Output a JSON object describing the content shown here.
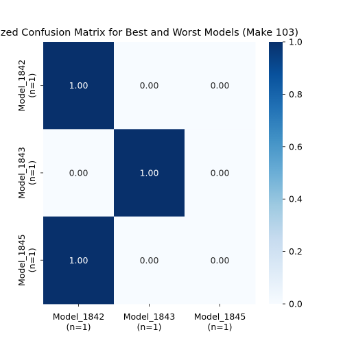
{
  "chart_data": {
    "type": "heatmap",
    "title": "zed Confusion Matrix for Best and Worst Models (Make 103)",
    "x_categories": [
      "Model_1842\n(n=1)",
      "Model_1843\n(n=1)",
      "Model_1845\n(n=1)"
    ],
    "y_categories": [
      "Model_1842\n(n=1)",
      "Model_1843\n(n=1)",
      "Model_1845\n(n=1)"
    ],
    "values": [
      [
        1.0,
        0.0,
        0.0
      ],
      [
        0.0,
        1.0,
        0.0
      ],
      [
        1.0,
        0.0,
        0.0
      ]
    ],
    "cell_labels": [
      [
        "1.00",
        "0.00",
        "0.00"
      ],
      [
        "0.00",
        "1.00",
        "0.00"
      ],
      [
        "1.00",
        "0.00",
        "0.00"
      ]
    ],
    "colorbar": {
      "range": [
        0.0,
        1.0
      ],
      "ticks": [
        "0.0",
        "0.2",
        "0.4",
        "0.6",
        "0.8",
        "1.0"
      ],
      "colormap": "Blues",
      "low_color": "#f7fbff",
      "high_color": "#08306b"
    },
    "xlabel": "",
    "ylabel": "",
    "grid": false
  }
}
